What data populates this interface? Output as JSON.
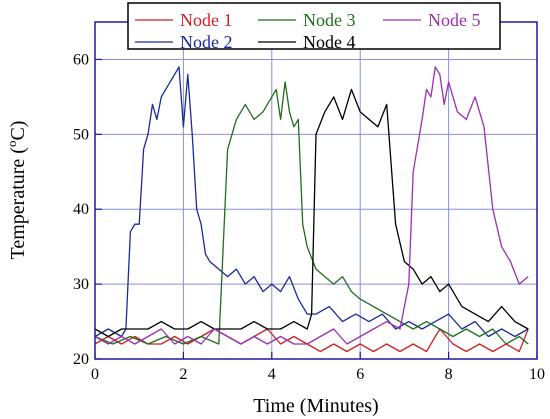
{
  "chart_data": {
    "type": "line",
    "title": "",
    "xlabel": "Time (Minutes)",
    "ylabel": {
      "prefix": "Temperature (",
      "superscript": "o",
      "suffix": "C)"
    },
    "xlim": [
      0,
      10
    ],
    "ylim": [
      20,
      65
    ],
    "xticks": [
      0,
      2,
      4,
      6,
      8,
      10
    ],
    "yticks": [
      20,
      30,
      40,
      50,
      60
    ],
    "grid": true,
    "legend_position": "top",
    "series": [
      {
        "name": "Node 1",
        "color": "#cc2222",
        "x": [
          0,
          0.3,
          0.6,
          0.9,
          1.2,
          1.5,
          1.8,
          2.1,
          2.4,
          2.7,
          3.0,
          3.3,
          3.6,
          3.9,
          4.2,
          4.5,
          4.8,
          5.1,
          5.4,
          5.7,
          6.0,
          6.3,
          6.6,
          6.9,
          7.2,
          7.5,
          7.8,
          8.1,
          8.4,
          8.7,
          9.0,
          9.3,
          9.6,
          9.8
        ],
        "y": [
          22,
          23,
          22,
          23,
          22,
          22,
          23,
          22,
          23,
          24,
          23,
          22,
          23,
          24,
          22,
          23,
          22,
          21,
          22,
          21,
          22,
          21,
          22,
          21,
          22,
          21,
          24,
          22,
          21,
          22,
          21,
          22,
          21,
          24
        ]
      },
      {
        "name": "Node 2",
        "color": "#1a2a9a",
        "x": [
          0,
          0.3,
          0.6,
          0.7,
          0.8,
          0.9,
          1.0,
          1.1,
          1.2,
          1.3,
          1.4,
          1.5,
          1.6,
          1.7,
          1.8,
          1.9,
          2.0,
          2.1,
          2.2,
          2.3,
          2.4,
          2.5,
          2.6,
          2.8,
          3.0,
          3.2,
          3.4,
          3.6,
          3.8,
          4.0,
          4.2,
          4.4,
          4.6,
          4.8,
          5.0,
          5.3,
          5.6,
          5.9,
          6.2,
          6.5,
          6.8,
          7.1,
          7.4,
          7.7,
          8.0,
          8.3,
          8.6,
          8.9,
          9.2,
          9.5,
          9.8
        ],
        "y": [
          23,
          24,
          23,
          24,
          37,
          38,
          38,
          48,
          50,
          54,
          52,
          55,
          56,
          57,
          58,
          59,
          51,
          58,
          50,
          40,
          38,
          34,
          33,
          32,
          31,
          32,
          30,
          31,
          29,
          30,
          29,
          31,
          28,
          26,
          26,
          27,
          25,
          26,
          25,
          26,
          24,
          25,
          24,
          25,
          26,
          24,
          25,
          23,
          24,
          23,
          24
        ]
      },
      {
        "name": "Node 3",
        "color": "#1e6e1e",
        "x": [
          0,
          0.4,
          0.8,
          1.2,
          1.6,
          2.0,
          2.4,
          2.8,
          2.9,
          3.0,
          3.2,
          3.4,
          3.6,
          3.8,
          4.0,
          4.1,
          4.2,
          4.3,
          4.4,
          4.5,
          4.6,
          4.7,
          4.8,
          5.0,
          5.2,
          5.4,
          5.6,
          5.8,
          6.0,
          6.3,
          6.6,
          6.9,
          7.2,
          7.5,
          7.8,
          8.1,
          8.4,
          8.7,
          9.0,
          9.3,
          9.6,
          9.8
        ],
        "y": [
          23,
          22,
          23,
          22,
          23,
          22,
          23,
          22,
          35,
          48,
          52,
          54,
          52,
          53,
          55,
          56,
          52,
          57,
          53,
          51,
          52,
          38,
          35,
          32,
          31,
          30,
          31,
          29,
          28,
          27,
          26,
          25,
          24,
          25,
          24,
          23,
          24,
          23,
          24,
          22,
          23,
          22
        ]
      },
      {
        "name": "Node 4",
        "color": "#000000",
        "x": [
          0,
          0.3,
          0.6,
          0.9,
          1.2,
          1.5,
          1.8,
          2.1,
          2.4,
          2.7,
          3.0,
          3.3,
          3.6,
          3.9,
          4.2,
          4.5,
          4.8,
          4.9,
          5.0,
          5.2,
          5.4,
          5.6,
          5.8,
          6.0,
          6.2,
          6.4,
          6.6,
          6.8,
          7.0,
          7.2,
          7.4,
          7.6,
          7.8,
          8.0,
          8.3,
          8.6,
          8.9,
          9.2,
          9.5,
          9.8
        ],
        "y": [
          24,
          23,
          24,
          24,
          24,
          25,
          24,
          24,
          25,
          24,
          24,
          24,
          25,
          24,
          24,
          25,
          24,
          26,
          50,
          53,
          55,
          52,
          56,
          53,
          52,
          51,
          54,
          38,
          33,
          32,
          30,
          31,
          29,
          30,
          27,
          26,
          25,
          27,
          25,
          24
        ]
      },
      {
        "name": "Node 5",
        "color": "#9a30b0",
        "x": [
          0,
          0.3,
          0.6,
          0.9,
          1.2,
          1.5,
          1.8,
          2.1,
          2.4,
          2.7,
          3.0,
          3.3,
          3.6,
          3.9,
          4.2,
          4.5,
          4.8,
          5.1,
          5.4,
          5.7,
          6.0,
          6.3,
          6.6,
          6.9,
          7.1,
          7.2,
          7.4,
          7.5,
          7.6,
          7.7,
          7.8,
          7.9,
          8.0,
          8.2,
          8.4,
          8.6,
          8.8,
          9.0,
          9.2,
          9.4,
          9.6,
          9.8
        ],
        "y": [
          23,
          22,
          23,
          22,
          23,
          24,
          22,
          23,
          22,
          24,
          23,
          22,
          23,
          22,
          23,
          22,
          22,
          23,
          24,
          22,
          23,
          24,
          25,
          24,
          30,
          45,
          52,
          56,
          55,
          59,
          58,
          54,
          57,
          53,
          52,
          55,
          51,
          40,
          35,
          33,
          30,
          31
        ]
      }
    ]
  }
}
